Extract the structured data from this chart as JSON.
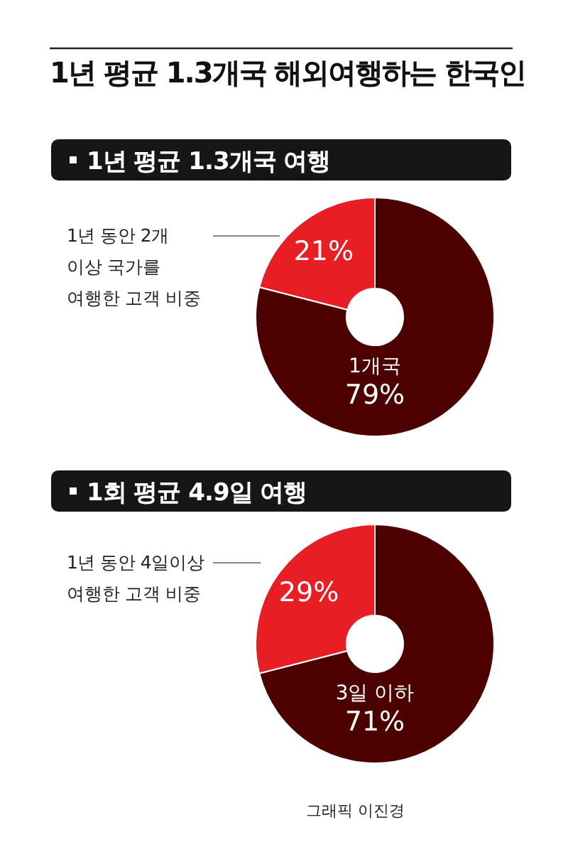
{
  "chart_data": [
    {
      "type": "donut",
      "title": "1년 평균 1.3개국 해외여행하는 한국인",
      "subtitle": "1년 평균 1.3개국 여행",
      "categories": [
        "1년 동안 2개 이상 국가를 여행한 고객 비중",
        "1개국"
      ],
      "values": [
        21,
        79
      ],
      "colors": [
        "#e81e25",
        "#4d0000"
      ],
      "value_labels": [
        "21%",
        "79%"
      ]
    },
    {
      "type": "donut",
      "title": "1회 평균 4.9일 여행",
      "categories": [
        "1년 동안 4일이상 여행한 고객 비중",
        "3일 이하"
      ],
      "values": [
        29,
        71
      ],
      "colors": [
        "#e81e25",
        "#4d0000"
      ],
      "value_labels": [
        "29%",
        "71%"
      ],
      "annotations": [
        "그래픽 이진경"
      ]
    }
  ]
}
